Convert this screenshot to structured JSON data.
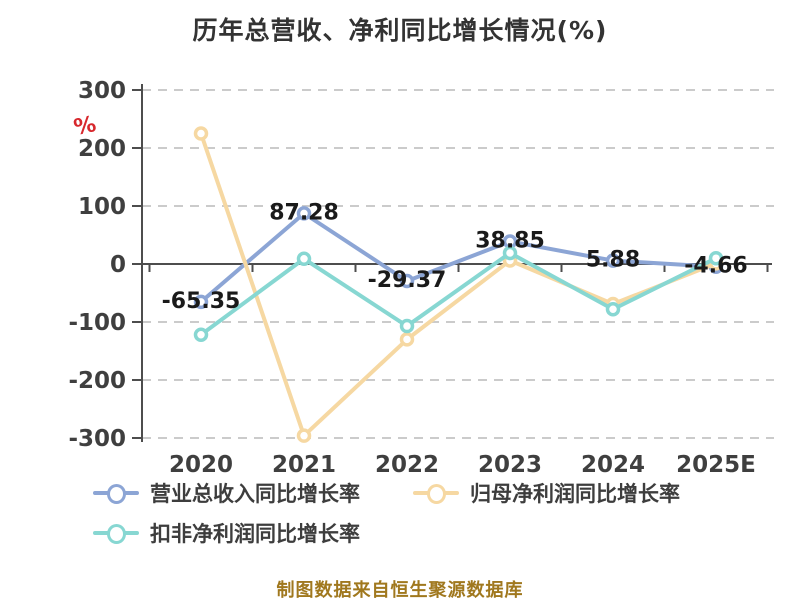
{
  "chart_data": {
    "type": "line",
    "title": "历年总营收、净利同比增长情况(%)",
    "y_unit": "%",
    "xlabel": "",
    "ylabel": "%",
    "categories": [
      "2020",
      "2021",
      "2022",
      "2023",
      "2024",
      "2025E"
    ],
    "series": [
      {
        "name": "营业总收入同比增长率",
        "color": "#8CA5D5",
        "values": [
          -65.35,
          87.28,
          -29.37,
          38.85,
          5.88,
          -4.66
        ],
        "point_labels": [
          "-65.35",
          "87.28",
          "-29.37",
          "38.85",
          "5.88",
          "-4.66"
        ]
      },
      {
        "name": "归母净利润同比增长率",
        "color": "#F6D8A2",
        "values": [
          225,
          -296,
          -130,
          6,
          -69,
          1
        ],
        "point_labels": []
      },
      {
        "name": "扣非净利润同比增长率",
        "color": "#87D7D2",
        "values": [
          -122,
          9,
          -107,
          19,
          -78,
          10
        ],
        "point_labels": []
      }
    ],
    "y_ticks": [
      300,
      200,
      100,
      0,
      -100,
      -200,
      -300
    ],
    "ylim": [
      -300,
      300
    ],
    "grid": "horizontal-dashed",
    "legend_position": "bottom-left",
    "footer": "制图数据来自恒生聚源数据库",
    "colors": {
      "axis_line": "#4d4d4d",
      "grid_line": "#cbcbcb",
      "tick_label": "#3f3f3f",
      "data_label": "#1a1a1a",
      "unit_label": "#d7282d",
      "footer_text": "#a0781e",
      "marker_fill": "#ffffff",
      "background": "#ffffff"
    }
  }
}
